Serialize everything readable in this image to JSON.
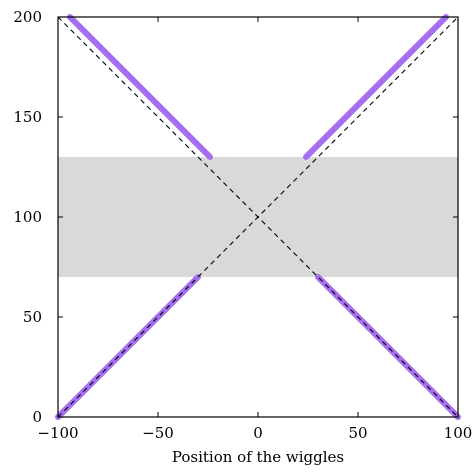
{
  "chart_data": {
    "type": "line",
    "title": "",
    "xlabel": "Position of the wiggles",
    "ylabel": "",
    "xlim": [
      -100,
      100
    ],
    "ylim": [
      0,
      200
    ],
    "xticks": [
      -100,
      -50,
      0,
      50,
      100
    ],
    "yticks": [
      0,
      50,
      100,
      150,
      200
    ],
    "xtick_labels": [
      "−100",
      "−50",
      "0",
      "50",
      "100"
    ],
    "ytick_labels": [
      "0",
      "50",
      "100",
      "150",
      "200"
    ],
    "grid": false,
    "shaded_band": {
      "y_from": 70,
      "y_to": 130,
      "color": "#d9d9d9"
    },
    "reference_lines": [
      {
        "points": [
          [
            -100,
            200
          ],
          [
            100,
            0
          ]
        ],
        "style": "dashed",
        "color": "#000000"
      },
      {
        "points": [
          [
            -100,
            0
          ],
          [
            100,
            200
          ]
        ],
        "style": "dashed",
        "color": "#000000"
      }
    ],
    "series": [
      {
        "segments": [
          {
            "points": [
              [
                -94,
                200
              ],
              [
                -24,
                130
              ]
            ]
          },
          {
            "points": [
              [
                24,
                130
              ],
              [
                94,
                200
              ]
            ]
          },
          {
            "points": [
              [
                -100,
                0
              ],
              [
                -30,
                70
              ]
            ]
          },
          {
            "points": [
              [
                30,
                70
              ],
              [
                100,
                0
              ]
            ]
          }
        ],
        "color": "#a66ff0"
      }
    ]
  }
}
